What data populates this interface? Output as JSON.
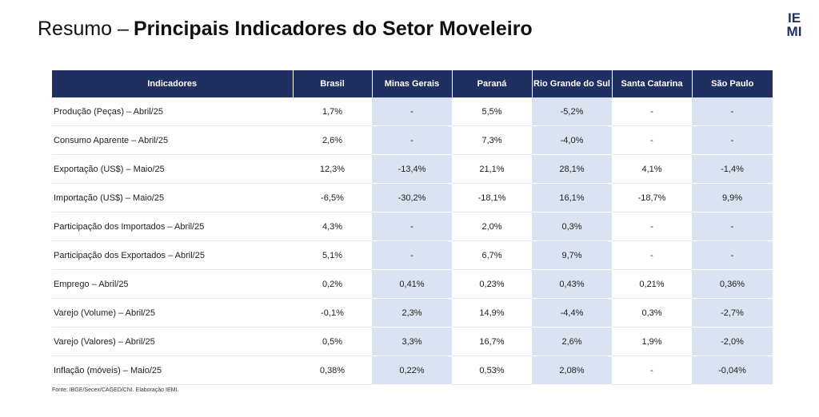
{
  "header": {
    "title_prefix": "Resumo –",
    "title_main": "Principais Indicadores do Setor Moveleiro",
    "logo": "IEMI"
  },
  "table": {
    "columns": [
      "Indicadores",
      "Brasil",
      "Minas Gerais",
      "Paraná",
      "Rio Grande do Sul",
      "Santa Catarina",
      "São Paulo"
    ],
    "rows": [
      [
        "Produção (Peças) – Abril/25",
        "1,7%",
        "-",
        "5,5%",
        "-5,2%",
        "-",
        "-"
      ],
      [
        "Consumo Aparente – Abril/25",
        "2,6%",
        "-",
        "7,3%",
        "-4,0%",
        "-",
        "-"
      ],
      [
        "Exportação (US$) – Maio/25",
        "12,3%",
        "-13,4%",
        "21,1%",
        "28,1%",
        "4,1%",
        "-1,4%"
      ],
      [
        "Importação (US$) – Maio/25",
        "-6,5%",
        "-30,2%",
        "-18,1%",
        "16,1%",
        "-18,7%",
        "9,9%"
      ],
      [
        "Participação dos Importados – Abril/25",
        "4,3%",
        "-",
        "2,0%",
        "0,3%",
        "-",
        "-"
      ],
      [
        "Participação dos Exportados – Abril/25",
        "5,1%",
        "-",
        "6,7%",
        "9,7%",
        "-",
        "-"
      ],
      [
        "Emprego – Abril/25",
        "0,2%",
        "0,41%",
        "0,23%",
        "0,43%",
        "0,21%",
        "0,36%"
      ],
      [
        "Varejo (Volume) – Abril/25",
        "-0,1%",
        "2,3%",
        "14,9%",
        "-4,4%",
        "0,3%",
        "-2,7%"
      ],
      [
        "Varejo (Valores) – Abril/25",
        "0,5%",
        "3,3%",
        "16,7%",
        "2,6%",
        "1,9%",
        "-2,0%"
      ],
      [
        "Inflação (móveis) – Maio/25",
        "0,38%",
        "0,22%",
        "0,53%",
        "2,08%",
        "-",
        "-0,04%"
      ]
    ]
  },
  "footnote": "Fonte: IBGE/Secex/CAGED/CNI. Elaboração IEMI."
}
